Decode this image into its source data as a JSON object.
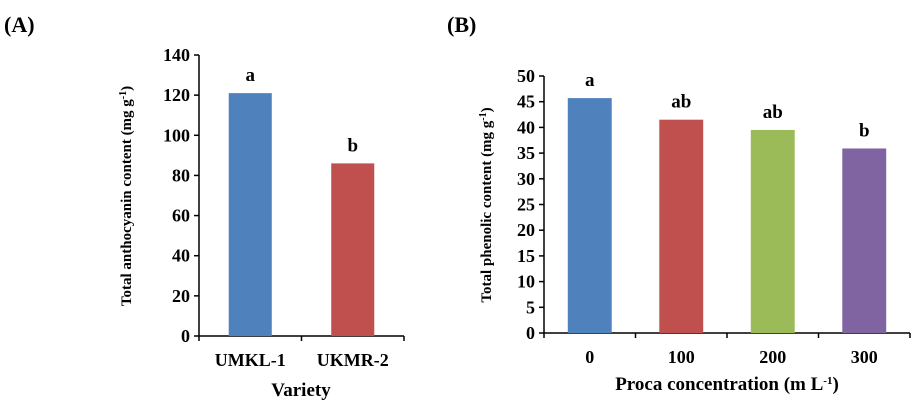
{
  "chart_data": [
    {
      "panel": "(A)",
      "type": "bar",
      "categories": [
        "UMKL-1",
        "UKMR-2"
      ],
      "values": [
        121,
        86
      ],
      "colors": [
        "#4f81bd",
        "#c0504d"
      ],
      "significance": [
        "a",
        "b"
      ],
      "ylabel_main": "Total anthocyanin content (mg g",
      "ylabel_sup": "-1",
      "ylabel_end": ")",
      "xlabel": "Variety",
      "ylim": [
        0,
        140
      ],
      "yticks": [
        0,
        20,
        40,
        60,
        80,
        100,
        120,
        140
      ],
      "grid": false
    },
    {
      "panel": "(B)",
      "type": "bar",
      "categories": [
        "0",
        "100",
        "200",
        "300"
      ],
      "values": [
        45.7,
        41.5,
        39.5,
        35.9
      ],
      "colors": [
        "#4f81bd",
        "#c0504d",
        "#9bbb59",
        "#8064a2"
      ],
      "significance": [
        "a",
        "ab",
        "ab",
        "b"
      ],
      "ylabel_main": "Total phenolic content (mg g",
      "ylabel_sup": "-1",
      "ylabel_end": ")",
      "xlabel_main": "Proca concentration (m L",
      "xlabel_sup": "-1",
      "xlabel_end": ")",
      "ylim": [
        0,
        50
      ],
      "yticks": [
        0,
        5,
        10,
        15,
        20,
        25,
        30,
        35,
        40,
        45,
        50
      ],
      "grid": false
    }
  ]
}
